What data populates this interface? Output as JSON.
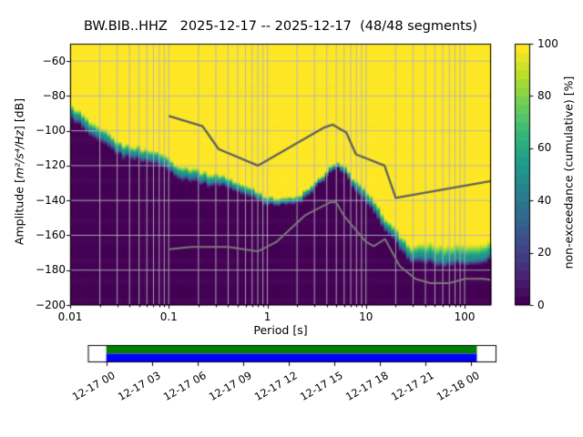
{
  "title": "BW.BIB..HHZ   2025-12-17 -- 2025-12-17  (48/48 segments)",
  "chart_data": {
    "type": "heatmap",
    "subtype": "ppsd-cumulative-spectrogram",
    "title": "BW.BIB..HHZ   2025-12-17 -- 2025-12-17  (48/48 segments)",
    "xlabel": "Period [s]",
    "ylabel_prefix": "Amplitude [",
    "ylabel_math": "m²/s⁴/Hz",
    "ylabel_suffix": "] [dB]",
    "xscale": "log",
    "xlim": [
      0.01,
      185
    ],
    "ylim": [
      -200,
      -50
    ],
    "grid": true,
    "xticks": [
      0.01,
      0.1,
      1,
      10,
      100
    ],
    "xtick_labels": [
      "0.01",
      "0.1",
      "1",
      "10",
      "100"
    ],
    "ytick_values": [
      -200,
      -180,
      -160,
      -140,
      -120,
      -100,
      -80,
      -60
    ],
    "ytick_labels": [
      "−200",
      "−180",
      "−160",
      "−140",
      "−120",
      "−100",
      "−80",
      "−60"
    ],
    "colormap": "viridis",
    "colorbar": {
      "label": "non-exceedance (cumulative) [%]",
      "ticks": [
        0,
        20,
        40,
        60,
        80,
        100
      ],
      "range": [
        0,
        100
      ],
      "discrete_steps": 30
    },
    "distribution": {
      "periods_s": [
        0.01,
        0.015,
        0.022,
        0.031,
        0.045,
        0.055,
        0.065,
        0.084,
        0.1,
        0.14,
        0.21,
        0.3,
        0.42,
        0.6,
        0.8,
        1.0,
        1.3,
        1.7,
        2.2,
        2.8,
        3.5,
        4.2,
        5.0,
        6.0,
        7.0,
        8.6,
        10.5,
        12,
        15,
        18,
        22,
        28,
        35,
        43,
        55,
        70,
        85,
        100,
        120,
        150,
        185
      ],
      "median_db": [
        -89,
        -97.5,
        -104.5,
        -110,
        -113,
        -114.5,
        -113.8,
        -117,
        -120,
        -124,
        -127,
        -128,
        -130.5,
        -134,
        -137.5,
        -139.5,
        -141,
        -140.5,
        -138,
        -135,
        -127.5,
        -123,
        -121,
        -121.5,
        -127.5,
        -134,
        -140,
        -144.5,
        -151,
        -158,
        -164,
        -171,
        -172,
        -172.5,
        -173,
        -173.5,
        -173.5,
        -173,
        -173,
        -172.5,
        -171.5
      ],
      "spread_upper_db": [
        4.5,
        5,
        5,
        4.5,
        4.5,
        4.5,
        4.5,
        4.5,
        4.5,
        4.5,
        4.5,
        4,
        3.5,
        3.5,
        3,
        3,
        2.5,
        2.5,
        2.5,
        2.5,
        2,
        2,
        2,
        2.5,
        3,
        4,
        4.5,
        4.5,
        4.5,
        4.5,
        5,
        6,
        7.5,
        8.5,
        9,
        9,
        9,
        9.5,
        9,
        8.5,
        8
      ],
      "spread_lower_db": [
        4.5,
        5,
        5,
        4.5,
        4.5,
        4.5,
        4.5,
        4.5,
        4.5,
        4.5,
        4.5,
        4,
        3.5,
        3.5,
        3,
        3,
        2.5,
        2.5,
        2.5,
        2.5,
        2,
        2,
        2,
        2.5,
        3,
        4,
        4.5,
        4.5,
        4.5,
        4.5,
        5,
        5,
        5,
        5,
        5,
        5,
        4.5,
        4.5,
        4.5,
        4.5,
        4.5
      ]
    },
    "noise_models": {
      "high_noise_model": [
        [
          0.1,
          -91.5
        ],
        [
          0.22,
          -97.4
        ],
        [
          0.32,
          -110.5
        ],
        [
          0.8,
          -120.0
        ],
        [
          3.8,
          -98.0
        ],
        [
          4.6,
          -96.5
        ],
        [
          6.3,
          -101.0
        ],
        [
          7.9,
          -113.5
        ],
        [
          15.4,
          -120.0
        ],
        [
          20.0,
          -138.5
        ],
        [
          354.8,
          -126.0
        ]
      ],
      "low_noise_model": [
        [
          0.1,
          -168.0
        ],
        [
          0.17,
          -166.7
        ],
        [
          0.4,
          -166.7
        ],
        [
          0.8,
          -169.2
        ],
        [
          1.24,
          -163.7
        ],
        [
          2.4,
          -148.6
        ],
        [
          4.3,
          -141.1
        ],
        [
          5.0,
          -141.1
        ],
        [
          6.0,
          -149.0
        ],
        [
          10.0,
          -163.8
        ],
        [
          12.0,
          -166.2
        ],
        [
          15.6,
          -162.1
        ],
        [
          21.9,
          -177.5
        ],
        [
          31.6,
          -185.0
        ],
        [
          45.0,
          -187.5
        ],
        [
          70.0,
          -187.5
        ],
        [
          101.0,
          -185.0
        ],
        [
          154.0,
          -185.0
        ],
        [
          328.0,
          -187.5
        ]
      ]
    },
    "timeline": {
      "tick_labels": [
        "12-17 00",
        "12-17 03",
        "12-17 06",
        "12-17 09",
        "12-17 12",
        "12-17 15",
        "12-17 18",
        "12-17 21",
        "12-18 00"
      ],
      "coverage_fraction_start": 0.045,
      "coverage_fraction_end": 0.952,
      "coverage_color_top": "#008000",
      "coverage_color_bottom": "#0000ff"
    },
    "colors": {
      "background": "#ffffff",
      "grid": "#b2b2be",
      "high_noise_line": "#5f5f5f",
      "low_noise_line": "#7a7a7a",
      "cmap_low": "#440154",
      "cmap_high": "#fde725",
      "axes_edge": "#000000"
    }
  }
}
